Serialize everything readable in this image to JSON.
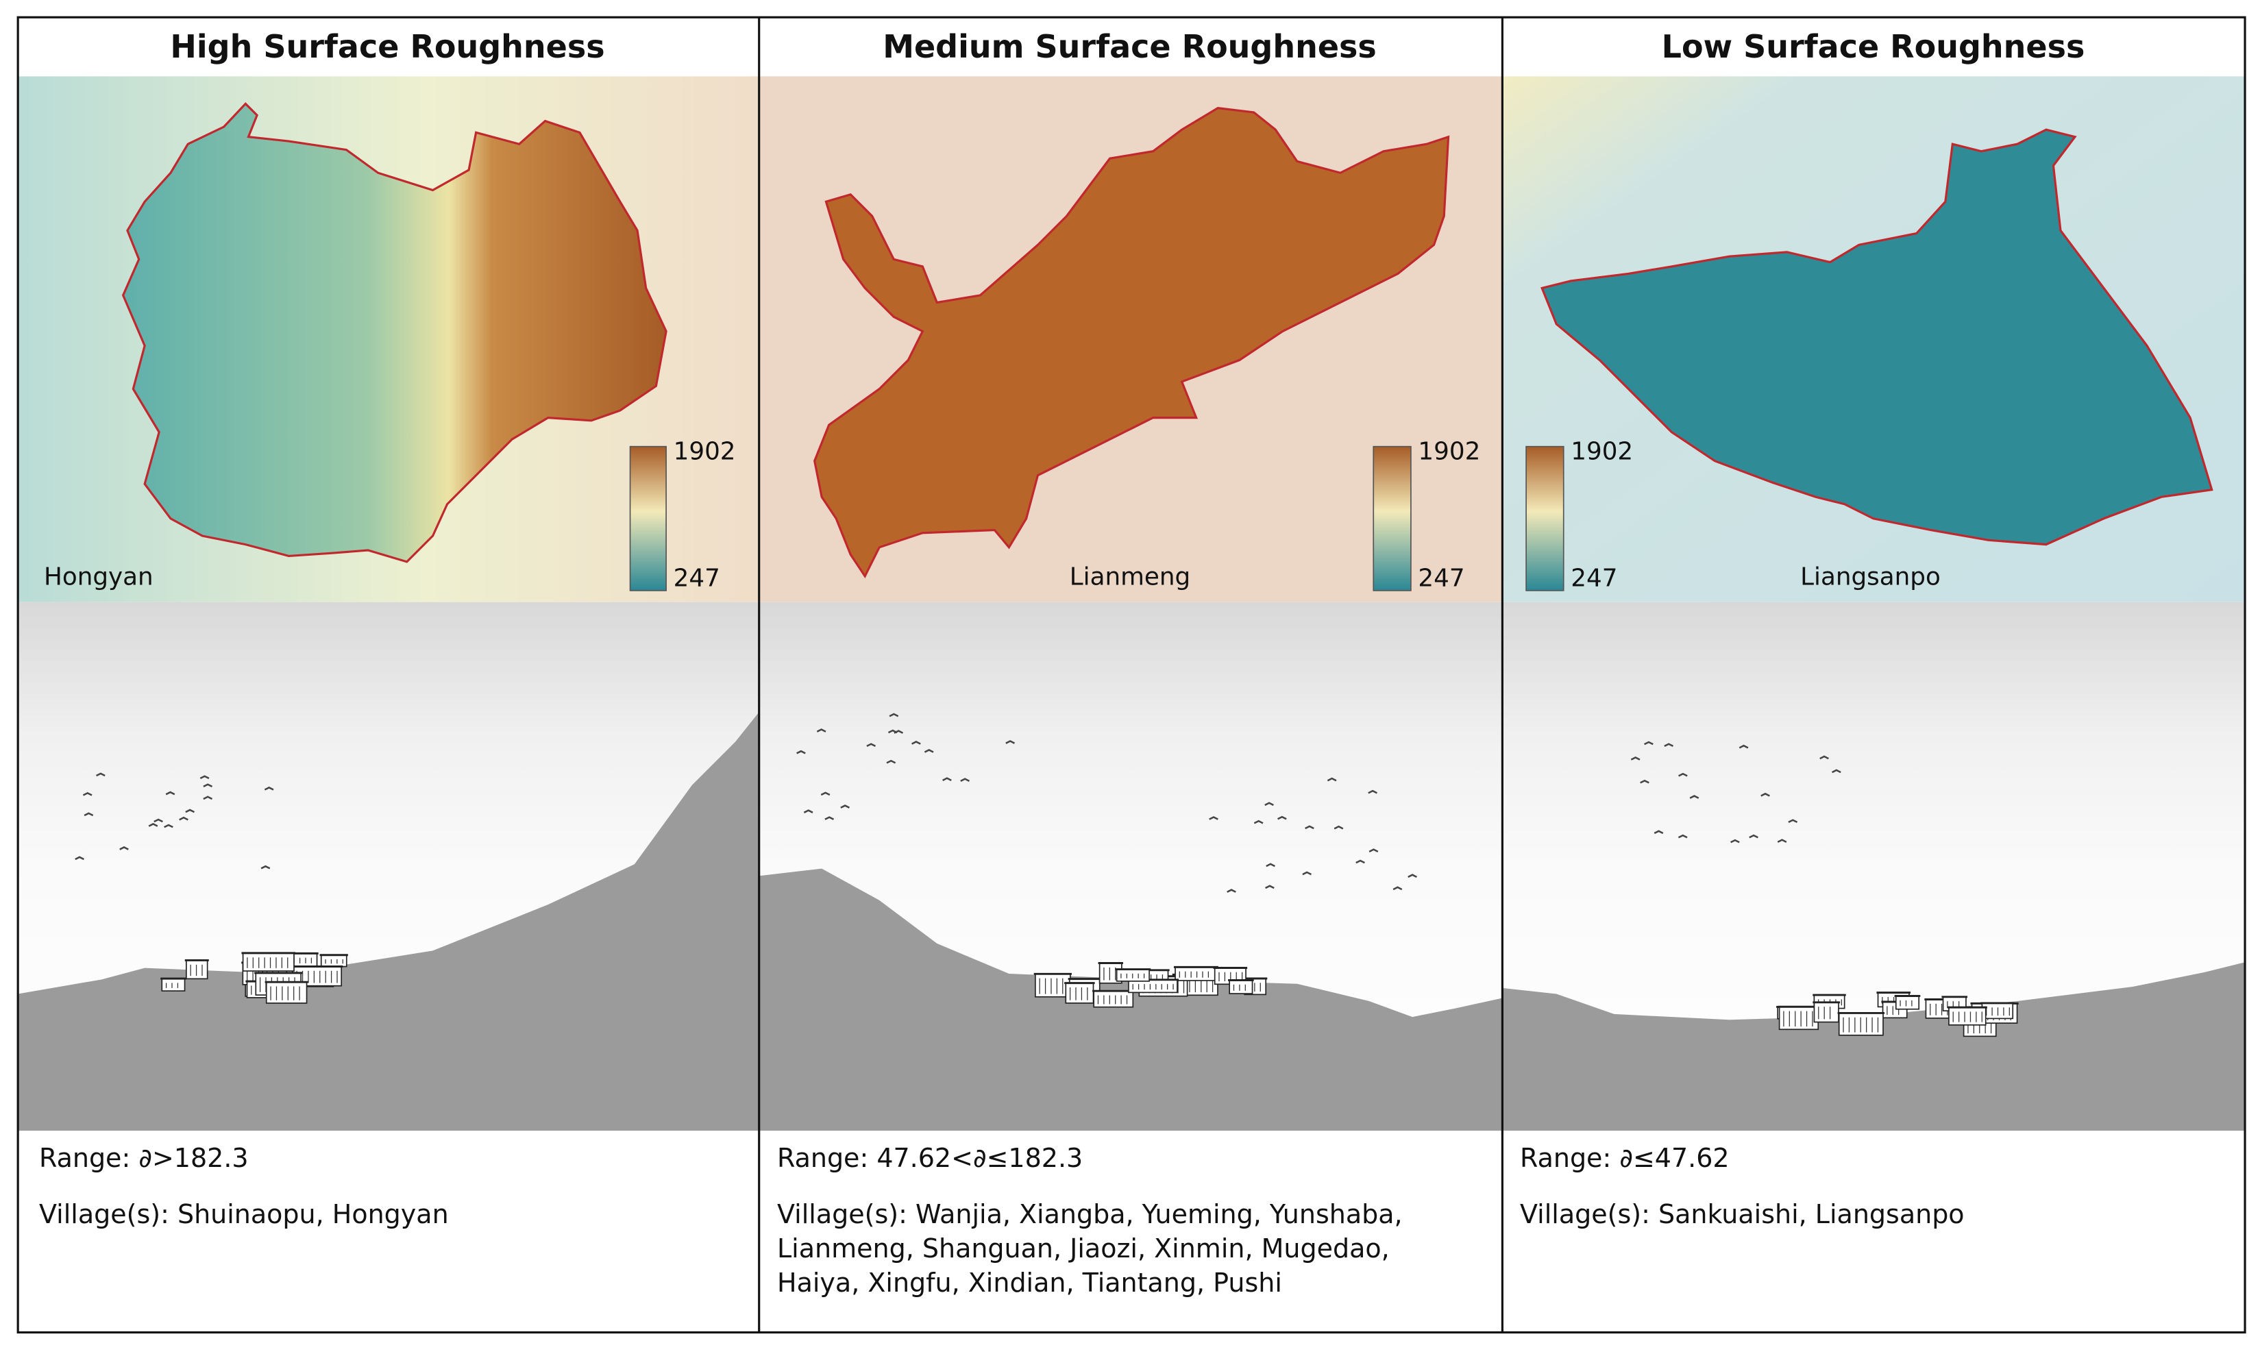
{
  "panels": [
    {
      "title": "High Surface Roughness",
      "legend": {
        "max": 1902,
        "min": 247
      },
      "map_label": "Hongyan",
      "range": "Range: ∂>182.3",
      "villages": "Village(s): Shuinaopu, Hongyan"
    },
    {
      "title": "Medium Surface Roughness",
      "legend": {
        "max": 1902,
        "min": 247
      },
      "map_label": "Lianmeng",
      "range": "Range: 47.62<∂≤182.3",
      "villages": "Village(s): Wanjia, Xiangba, Yueming, Yunshaba, Lianmeng, Shanguan, Jiaozi, Xinmin, Mugedao, Haiya, Xingfu, Xindian, Tiantang, Pushi"
    },
    {
      "title": "Low Surface Roughness",
      "legend": {
        "max": 1902,
        "min": 247
      },
      "map_label": "Liangsanpo",
      "range": "Range: ∂≤47.62",
      "villages": "Village(s): Sankuaishi, Liangsanpo"
    }
  ]
}
